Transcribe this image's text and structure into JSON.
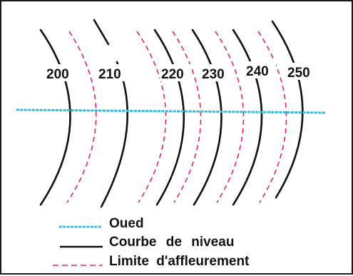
{
  "contour_labels": [
    "200",
    "210",
    "220",
    "230",
    "240",
    "250"
  ],
  "legend": {
    "items": [
      {
        "key": "stream",
        "label": "Oued",
        "color": "#3bbfe0",
        "style": "dotted"
      },
      {
        "key": "contour",
        "label": "Courbe de niveau",
        "color": "#111111",
        "style": "solid"
      },
      {
        "key": "outcrop",
        "label": "Limite d'affleurement",
        "color": "#e0207a",
        "style": "dashed"
      }
    ]
  },
  "colors": {
    "contour": "#111111",
    "outcrop": "#e0207a",
    "stream": "#3bbfe0"
  }
}
